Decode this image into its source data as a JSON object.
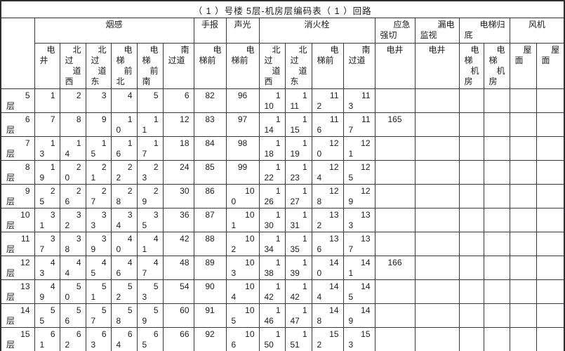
{
  "title": "（ 1 ）号楼 5层-机房层编码表（ 1 ）回路",
  "table": {
    "floor_header": "",
    "groups": [
      {
        "label": "烟感",
        "span": 6
      },
      {
        "label": "手报",
        "span": 1
      },
      {
        "label": "声光",
        "span": 1
      },
      {
        "label": "消火栓",
        "span": 4
      },
      {
        "label": "应急\n强切",
        "span": 1
      },
      {
        "label": "漏电\n监视",
        "span": 1
      },
      {
        "label": "电梯归\n底",
        "span": 2
      },
      {
        "label": "风机",
        "span": 2
      }
    ],
    "subheaders": [
      "电\n井",
      "北\n过\n道\n西",
      "北\n过\n道\n东",
      "电\n梯\n前\n北",
      "电\n梯\n前\n南",
      "南\n过道",
      "电\n梯前",
      "电\n梯前",
      "北\n过\n道\n西",
      "北\n过\n道\n东",
      "电\n梯前",
      "南\n过道",
      "电井",
      "电井",
      "电\n梯\n机\n房",
      "电\n梯\n机\n房",
      "屋\n面",
      "屋\n面"
    ],
    "rows": [
      {
        "floor": "5\n层",
        "cells": [
          "1",
          "2",
          "3",
          "4",
          "5",
          "6",
          "82",
          "96",
          "1\n10",
          "1\n11",
          "11\n2",
          "11\n3",
          "",
          "",
          "",
          "",
          "",
          ""
        ]
      },
      {
        "floor": "6\n层",
        "cells": [
          "7",
          "8",
          "9",
          "1\n0",
          "1\n1",
          "12",
          "83",
          "97",
          "1\n14",
          "1\n15",
          "11\n6",
          "11\n7",
          "165",
          "",
          "",
          "",
          "",
          ""
        ]
      },
      {
        "floor": "7\n层",
        "cells": [
          "1\n3",
          "1\n4",
          "1\n5",
          "1\n6",
          "1\n7",
          "18",
          "84",
          "98",
          "1\n18",
          "1\n19",
          "12\n0",
          "12\n1",
          "",
          "",
          "",
          "",
          "",
          ""
        ]
      },
      {
        "floor": "8\n层",
        "cells": [
          "1\n9",
          "2\n0",
          "2\n1",
          "2\n2",
          "2\n3",
          "24",
          "85",
          "99",
          "1\n22",
          "1\n23",
          "12\n4",
          "12\n5",
          "",
          "",
          "",
          "",
          "",
          ""
        ]
      },
      {
        "floor": "9\n层",
        "cells": [
          "2\n5",
          "2\n6",
          "2\n7",
          "2\n8",
          "2\n9",
          "30",
          "86",
          "10\n0",
          "1\n26",
          "1\n27",
          "12\n8",
          "12\n9",
          "",
          "",
          "",
          "",
          "",
          ""
        ]
      },
      {
        "floor": "10\n层",
        "cells": [
          "3\n1",
          "3\n2",
          "3\n3",
          "3\n4",
          "3\n5",
          "36",
          "87",
          "10\n1",
          "1\n30",
          "1\n31",
          "13\n2",
          "13\n3",
          "",
          "",
          "",
          "",
          "",
          ""
        ]
      },
      {
        "floor": "11\n层",
        "cells": [
          "3\n7",
          "3\n8",
          "3\n9",
          "4\n0",
          "4\n1",
          "42",
          "88",
          "10\n2",
          "1\n34",
          "1\n35",
          "13\n6",
          "13\n7",
          "",
          "",
          "",
          "",
          "",
          ""
        ]
      },
      {
        "floor": "12\n层",
        "cells": [
          "4\n3",
          "4\n4",
          "4\n5",
          "4\n6",
          "4\n7",
          "48",
          "89",
          "10\n3",
          "1\n38",
          "1\n39",
          "14\n0",
          "14\n1",
          "166",
          "",
          "",
          "",
          "",
          ""
        ]
      },
      {
        "floor": "13\n层",
        "cells": [
          "4\n9",
          "5\n0",
          "5\n1",
          "5\n2",
          "5\n3",
          "54",
          "90",
          "10\n4",
          "1\n42",
          "1\n42",
          "14\n4",
          "14\n5",
          "",
          "",
          "",
          "",
          "",
          ""
        ]
      },
      {
        "floor": "14\n层",
        "cells": [
          "5\n5",
          "5\n6",
          "5\n7",
          "5\n8",
          "5\n9",
          "60",
          "91",
          "10\n5",
          "1\n46",
          "1\n47",
          "14\n8",
          "14\n9",
          "",
          "",
          "",
          "",
          "",
          ""
        ]
      },
      {
        "floor": "15\n层",
        "cells": [
          "6\n1",
          "6\n2",
          "6\n3",
          "6\n4",
          "6\n5",
          "66",
          "92",
          "10\n6",
          "1\n50",
          "1\n51",
          "15\n2",
          "15\n3",
          "",
          "",
          "",
          "",
          "",
          ""
        ]
      }
    ]
  }
}
